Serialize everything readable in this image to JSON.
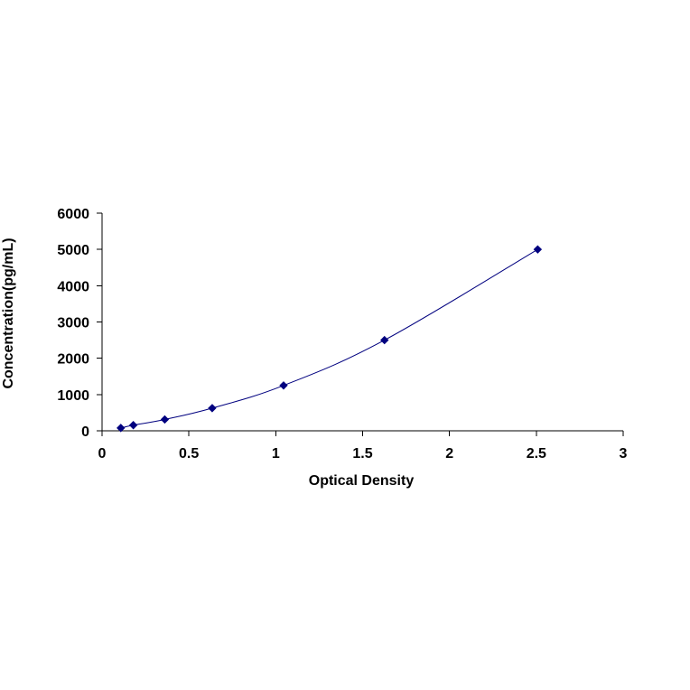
{
  "chart_data": {
    "type": "scatter",
    "title": "",
    "xlabel": "Optical Density",
    "ylabel": "Concentration(pg/mL)",
    "xlim": [
      0,
      3
    ],
    "ylim": [
      0,
      6000
    ],
    "x_ticks": [
      0,
      0.5,
      1,
      1.5,
      2,
      2.5,
      3
    ],
    "x_tick_labels": [
      "0",
      "0.5",
      "1",
      "1.5",
      "2",
      "2.5",
      "3"
    ],
    "y_ticks": [
      0,
      1000,
      2000,
      3000,
      4000,
      5000,
      6000
    ],
    "y_tick_labels": [
      "0",
      "1000",
      "2000",
      "3000",
      "4000",
      "5000",
      "6000"
    ],
    "grid": false,
    "legend": "none",
    "series": [
      {
        "x": [
          0.108,
          0.18,
          0.361,
          0.634,
          1.045,
          1.626,
          2.508
        ],
        "y": [
          78,
          156,
          312,
          625,
          1250,
          2500,
          5000
        ],
        "marker": "diamond",
        "line": "smooth",
        "color": "#00007f"
      }
    ]
  }
}
